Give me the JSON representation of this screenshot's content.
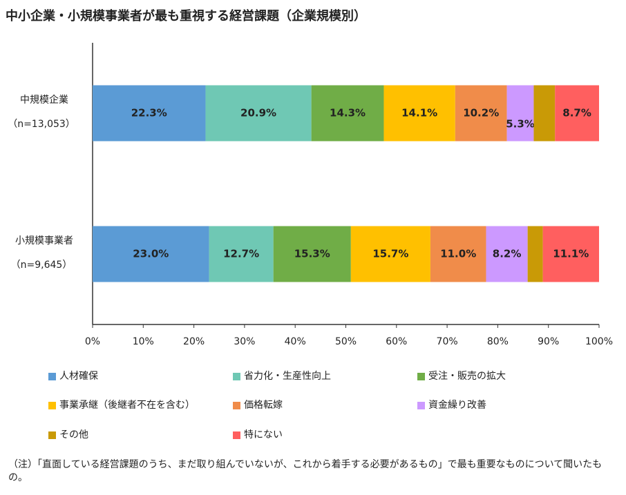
{
  "chart_data": {
    "type": "stacked-bar-horizontal",
    "title": "中小企業・小規模事業者が最も重視する経営課題（企業規模別）",
    "categories": [
      "中規模企業",
      "小規模事業者"
    ],
    "category_notes": [
      "（n=13,053）",
      "（n=9,645）"
    ],
    "series": [
      {
        "name": "人材確保",
        "color": "#5b9bd5",
        "values": [
          22.3,
          23.0
        ],
        "value_labels": [
          "22.3%",
          "23.0%"
        ]
      },
      {
        "name": "省力化・生産性向上",
        "color": "#6fc8b4",
        "values": [
          20.9,
          12.7
        ],
        "value_labels": [
          "20.9%",
          "12.7%"
        ]
      },
      {
        "name": "受注・販売の拡大",
        "color": "#70ad47",
        "values": [
          14.3,
          15.3
        ],
        "value_labels": [
          "14.3%",
          "15.3%"
        ]
      },
      {
        "name": "事業承継（後継者不在を含む）",
        "color": "#ffc000",
        "values": [
          14.1,
          15.7
        ],
        "value_labels": [
          "14.1%",
          "15.7%"
        ]
      },
      {
        "name": "価格転嫁",
        "color": "#f08c4a",
        "values": [
          10.2,
          11.0
        ],
        "value_labels": [
          "10.2%",
          "11.0%"
        ]
      },
      {
        "name": "資金繰り改善",
        "color": "#cc99ff",
        "values": [
          5.3,
          8.2
        ],
        "value_labels": [
          "5.3%",
          "8.2%"
        ]
      },
      {
        "name": "その他",
        "color": "#c99a06",
        "values": [
          4.2,
          3.0
        ],
        "value_labels": [
          null,
          null
        ]
      },
      {
        "name": "特にない",
        "color": "#ff5f5f",
        "values": [
          8.7,
          11.1
        ],
        "value_labels": [
          "8.7%",
          "11.1%"
        ]
      }
    ],
    "xlim": [
      0,
      100
    ],
    "xticks": [
      {
        "value": 0,
        "label": "0%"
      },
      {
        "value": 10,
        "label": "10%"
      },
      {
        "value": 20,
        "label": "20%"
      },
      {
        "value": 30,
        "label": "30%"
      },
      {
        "value": 40,
        "label": "40%"
      },
      {
        "value": 50,
        "label": "50%"
      },
      {
        "value": 60,
        "label": "60%"
      },
      {
        "value": 70,
        "label": "70%"
      },
      {
        "value": 80,
        "label": "80%"
      },
      {
        "value": 90,
        "label": "90%"
      },
      {
        "value": 100,
        "label": "100%"
      }
    ],
    "grid": false,
    "note": "（注）「直面している経営課題のうち、まだ取り組んでいないが、これから着手する必要があるもの」で最も重要なものについて聞いたもの。"
  }
}
